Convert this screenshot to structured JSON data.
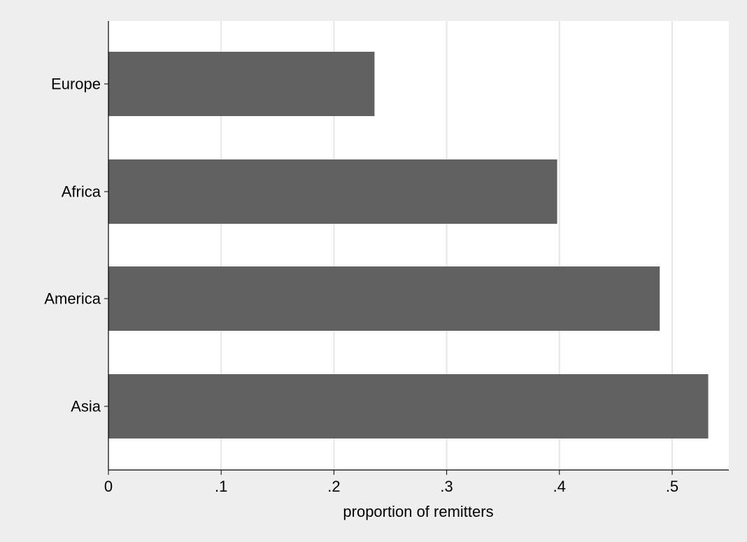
{
  "chart_data": {
    "type": "bar",
    "orientation": "horizontal",
    "categories": [
      "Europe",
      "Africa",
      "America",
      "Asia"
    ],
    "values": [
      0.236,
      0.398,
      0.489,
      0.532
    ],
    "xlabel": "proportion of remitters",
    "ylabel": "",
    "xlim": [
      0,
      0.55
    ],
    "xticks": [
      0,
      0.1,
      0.2,
      0.3,
      0.4,
      0.5
    ],
    "xtick_labels": [
      "0",
      ".1",
      ".2",
      ".3",
      ".4",
      ".5"
    ],
    "grid": true,
    "colors": {
      "bar": "#616161",
      "plot_bg": "#ffffff",
      "outer_bg": "#eeeeee",
      "grid": "#e6e6e6"
    }
  }
}
